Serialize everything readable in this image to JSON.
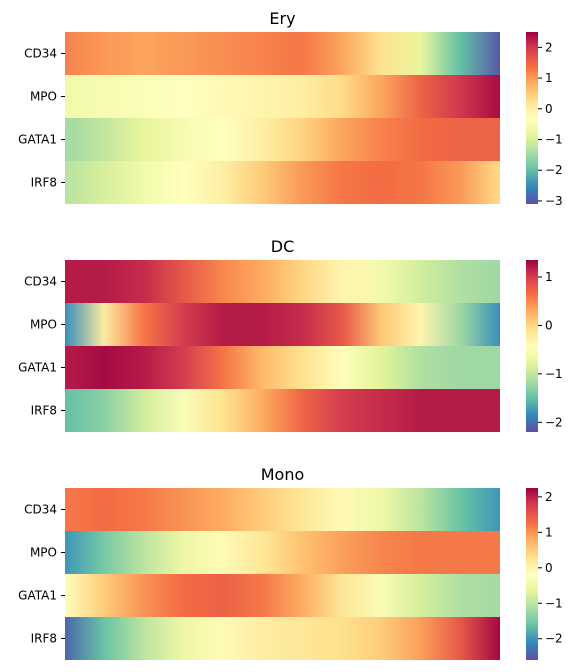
{
  "chart_data": [
    {
      "type": "heatmap",
      "title": "Ery",
      "rows": [
        "CD34",
        "MPO",
        "GATA1",
        "IRF8"
      ],
      "colormap": "Spectral_r",
      "vmin": -3.1,
      "vmax": 2.5,
      "colorbar_ticks": [
        2,
        1,
        0,
        -1,
        -2,
        -3
      ],
      "colorbar_tick_labels": [
        "2",
        "1",
        "0",
        "−1",
        "−2",
        "−3"
      ],
      "values": [
        [
          1.2,
          1.0,
          0.9,
          1.0,
          1.1,
          1.2,
          1.3,
          0.9,
          0.2,
          -0.8,
          -2.0,
          -3.0
        ],
        [
          -0.6,
          -0.5,
          -0.4,
          -0.3,
          -0.2,
          -0.1,
          0.0,
          0.3,
          0.9,
          1.5,
          2.0,
          2.4
        ],
        [
          -1.5,
          -1.2,
          -0.8,
          -0.5,
          -0.3,
          0.0,
          0.4,
          0.9,
          1.2,
          1.4,
          1.5,
          1.5
        ],
        [
          -1.3,
          -1.0,
          -0.6,
          -0.3,
          0.0,
          0.5,
          1.0,
          1.3,
          1.4,
          1.3,
          1.0,
          0.3
        ]
      ]
    },
    {
      "type": "heatmap",
      "title": "DC",
      "rows": [
        "CD34",
        "MPO",
        "GATA1",
        "IRF8"
      ],
      "colormap": "Spectral_r",
      "vmin": -2.2,
      "vmax": 1.35,
      "colorbar_ticks": [
        1,
        0,
        -1,
        -2
      ],
      "colorbar_tick_labels": [
        "1",
        "0",
        "−1",
        "−2"
      ],
      "values": [
        [
          1.2,
          1.2,
          1.1,
          0.8,
          0.5,
          0.3,
          0.0,
          -0.3,
          -0.6,
          -0.9,
          -1.1,
          -1.2
        ],
        [
          -1.8,
          -0.2,
          0.6,
          1.0,
          1.2,
          1.2,
          1.1,
          0.8,
          0.1,
          -0.3,
          -1.2,
          -1.8
        ],
        [
          1.2,
          1.3,
          1.2,
          1.0,
          0.6,
          0.2,
          -0.1,
          -0.4,
          -0.8,
          -1.1,
          -1.2,
          -1.2
        ],
        [
          -1.5,
          -1.3,
          -0.9,
          -0.5,
          -0.1,
          0.3,
          0.7,
          1.0,
          1.1,
          1.2,
          1.2,
          1.2
        ]
      ]
    },
    {
      "type": "heatmap",
      "title": "Mono",
      "rows": [
        "CD34",
        "MPO",
        "GATA1",
        "IRF8"
      ],
      "colormap": "Spectral_r",
      "vmin": -2.6,
      "vmax": 2.25,
      "colorbar_ticks": [
        2,
        1,
        0,
        -1,
        -2
      ],
      "colorbar_tick_labels": [
        "2",
        "1",
        "0",
        "−1",
        "−2"
      ],
      "values": [
        [
          1.2,
          1.3,
          1.2,
          1.0,
          0.8,
          0.5,
          0.2,
          -0.1,
          -0.5,
          -1.0,
          -1.6,
          -2.0
        ],
        [
          -2.0,
          -1.5,
          -1.0,
          -0.5,
          -0.1,
          0.2,
          0.6,
          0.9,
          1.1,
          1.2,
          1.2,
          1.2
        ],
        [
          -0.2,
          0.5,
          1.0,
          1.3,
          1.4,
          1.2,
          0.8,
          0.2,
          -0.3,
          -0.8,
          -1.1,
          -1.2
        ],
        [
          -2.4,
          -1.6,
          -1.0,
          -0.5,
          -0.1,
          0.1,
          0.2,
          0.3,
          0.5,
          0.9,
          1.5,
          2.2
        ]
      ]
    }
  ]
}
